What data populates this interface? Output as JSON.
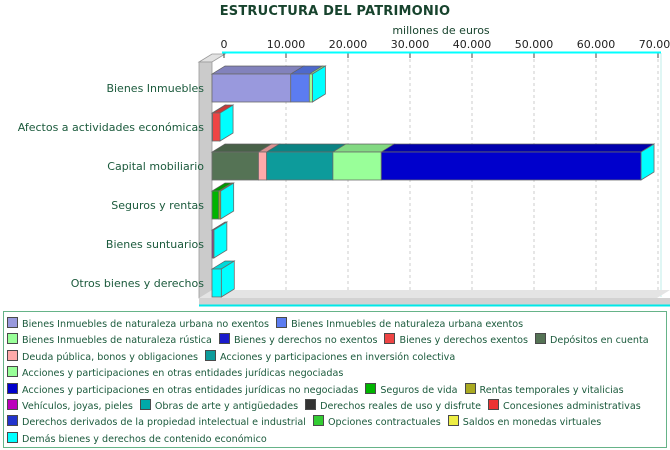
{
  "title": "ESTRUCTURA DEL PATRIMONIO",
  "axis": {
    "label": "millones de euros",
    "ticks": [
      "0",
      "10.000",
      "20.000",
      "30.000",
      "40.000",
      "50.000",
      "60.000",
      "70.000"
    ],
    "max": 70000
  },
  "chart_data": {
    "type": "bar",
    "orientation": "horizontal",
    "stacked": true,
    "style": "3d",
    "title": "ESTRUCTURA DEL PATRIMONIO",
    "xlabel": "millones de euros",
    "xlim": [
      0,
      70000
    ],
    "grid": "dashed-vertical",
    "legend_position": "bottom",
    "units": "millones de euros",
    "categories": [
      "Bienes Inmuebles",
      "Afectos a actividades económicas",
      "Capital mobiliario",
      "Seguros y rentas",
      "Bienes suntuarios",
      "Otros bienes y derechos"
    ],
    "series": [
      {
        "name": "Bienes Inmuebles de naturaleza urbana no exentos",
        "color": "#9999dd",
        "values": [
          12700,
          0,
          0,
          0,
          0,
          0
        ]
      },
      {
        "name": "Bienes Inmuebles de naturaleza urbana exentos",
        "color": "#5c7cf0",
        "values": [
          3000,
          0,
          0,
          0,
          0,
          0
        ]
      },
      {
        "name": "Bienes Inmuebles de naturaleza rústica",
        "color": "#99ff99",
        "values": [
          500,
          0,
          0,
          0,
          0,
          0
        ]
      },
      {
        "name": "Bienes y derechos no exentos",
        "color": "#1a1acc",
        "values": [
          0,
          100,
          0,
          0,
          0,
          0
        ]
      },
      {
        "name": "Bienes y derechos exentos",
        "color": "#ee4444",
        "values": [
          0,
          1200,
          0,
          0,
          0,
          0
        ]
      },
      {
        "name": "Depósitos en cuenta",
        "color": "#557355",
        "values": [
          0,
          0,
          7500,
          0,
          0,
          0
        ]
      },
      {
        "name": "Deuda pública, bonos y obligaciones",
        "color": "#ffaaaa",
        "values": [
          0,
          0,
          1300,
          0,
          0,
          0
        ]
      },
      {
        "name": "Acciones y participaciones en inversión colectiva",
        "color": "#0d9b9b",
        "values": [
          0,
          0,
          10700,
          0,
          0,
          0
        ]
      },
      {
        "name": "Acciones y participaciones en otras entidades jurídicas negociadas",
        "color": "#99ff99",
        "values": [
          0,
          0,
          7800,
          0,
          0,
          0
        ]
      },
      {
        "name": "Acciones y participaciones en otras entidades jurídicas no negociadas",
        "color": "#0000cc",
        "values": [
          0,
          0,
          41900,
          0,
          0,
          0
        ]
      },
      {
        "name": "Seguros de vida",
        "color": "#00b400",
        "values": [
          0,
          0,
          0,
          1100,
          0,
          0
        ]
      },
      {
        "name": "Rentas temporales y vitalicias",
        "color": "#aaaa22",
        "values": [
          0,
          0,
          0,
          300,
          0,
          0
        ]
      },
      {
        "name": "Vehículos, joyas, pieles",
        "color": "#bb00bb",
        "values": [
          0,
          0,
          0,
          0,
          200,
          0
        ]
      },
      {
        "name": "Obras de arte y antigüedades",
        "color": "#00aaaa",
        "values": [
          0,
          0,
          0,
          0,
          100,
          0
        ]
      },
      {
        "name": "Derechos reales de uso y disfrute",
        "color": "#333333",
        "values": [
          0,
          0,
          0,
          0,
          0,
          0
        ]
      },
      {
        "name": "Concesiones administrativas",
        "color": "#ee3333",
        "values": [
          0,
          0,
          0,
          0,
          0,
          0
        ]
      },
      {
        "name": "Derechos derivados de la propiedad intelectual e industrial",
        "color": "#2233cc",
        "values": [
          0,
          0,
          0,
          0,
          0,
          0
        ]
      },
      {
        "name": "Opciones contractuales",
        "color": "#33cc33",
        "values": [
          0,
          0,
          0,
          0,
          0,
          0
        ]
      },
      {
        "name": "Saldos en monedas virtuales",
        "color": "#eeee44",
        "values": [
          0,
          0,
          0,
          0,
          0,
          0
        ]
      },
      {
        "name": "Demás bienes y derechos de contenido económico",
        "color": "#00ffff",
        "values": [
          0,
          0,
          0,
          0,
          0,
          1500
        ]
      }
    ]
  },
  "legend": {
    "rows": [
      [
        0,
        1
      ],
      [
        2,
        3,
        4,
        5
      ],
      [
        6,
        7
      ],
      [
        8
      ],
      [
        9,
        10,
        11
      ],
      [
        12,
        13,
        14,
        15
      ],
      [
        16,
        17,
        18
      ],
      [
        19
      ]
    ]
  },
  "colors": {
    "title_text": "#17432d",
    "label_text": "#1b5a3c",
    "tick_text": "#222222",
    "axis_line": "#00ffff",
    "end_cap": "#00ffff",
    "grid_line": "#cccccc",
    "wall_front": "#cbcbcb",
    "wall_top": "#e2e2e2",
    "floor_front": "#d2d2d2",
    "floor_top": "#e4e4e4",
    "floor_edge": "#00e8e8",
    "legend_border": "#66b388",
    "outline": "#6b6b6b"
  }
}
